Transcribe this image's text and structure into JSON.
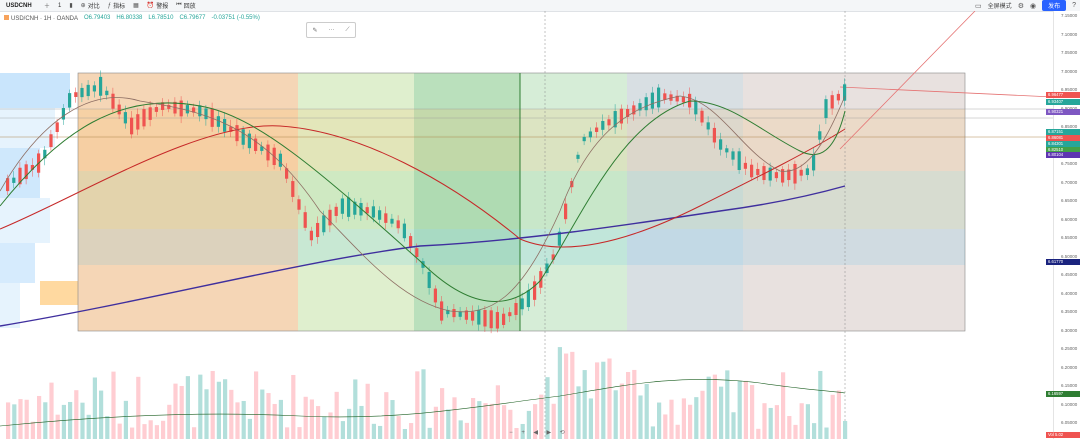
{
  "toolbar": {
    "symbol": "USDCNH",
    "items": [
      {
        "icon": "plus-icon",
        "label": ""
      },
      {
        "icon": "period-icon",
        "label": "1"
      },
      {
        "icon": "candle-icon",
        "label": ""
      },
      {
        "icon": "compare-icon",
        "label": "对比"
      },
      {
        "icon": "indicator-icon",
        "label": "指标"
      },
      {
        "icon": "template-icon",
        "label": ""
      },
      {
        "icon": "alert-icon",
        "label": "警报"
      },
      {
        "icon": "replay-icon",
        "label": "回放"
      }
    ],
    "right": [
      "全屏模式",
      "发布"
    ]
  },
  "legend": {
    "name": "USD/CNH · 1H · OANDA",
    "o": "O6.79403",
    "h": "H6.80338",
    "l": "L6.78510",
    "c": "C6.79677",
    "chg": "-0.03751 (-0.55%)"
  },
  "price_axis": {
    "ticks": [
      "7.15000",
      "7.10000",
      "7.05000",
      "7.00000",
      "6.95000",
      "6.90000",
      "6.85000",
      "6.80000",
      "6.75000",
      "6.70000",
      "6.65000",
      "6.60000",
      "6.55000",
      "6.50000",
      "6.45000",
      "6.40000",
      "6.35000",
      "6.30000",
      "6.25000",
      "6.20000",
      "6.15000",
      "6.10000",
      "6.05000"
    ],
    "labels": [
      {
        "text": "6.96477",
        "color": "#ef5350"
      },
      {
        "text": "6.93407",
        "color": "#26a69a"
      },
      {
        "text": "6.90321",
        "color": "#7e57c2"
      },
      {
        "text": "6.87151",
        "color": "#26a69a"
      },
      {
        "text": "6.86081",
        "color": "#ef5350"
      },
      {
        "text": "6.84301",
        "color": "#26a69a"
      },
      {
        "text": "6.82510",
        "color": "#43a047"
      },
      {
        "text": "6.80104",
        "color": "#5e35b1"
      },
      {
        "text": "6.61770",
        "color": "#1a237e"
      },
      {
        "text": "6.16597",
        "color": "#2e7d32"
      },
      {
        "text": "Vol 5.02",
        "color": "#ef5350"
      }
    ]
  },
  "bottom_controls": [
    "−",
    "+",
    "◀",
    "▶",
    "⟲"
  ]
}
